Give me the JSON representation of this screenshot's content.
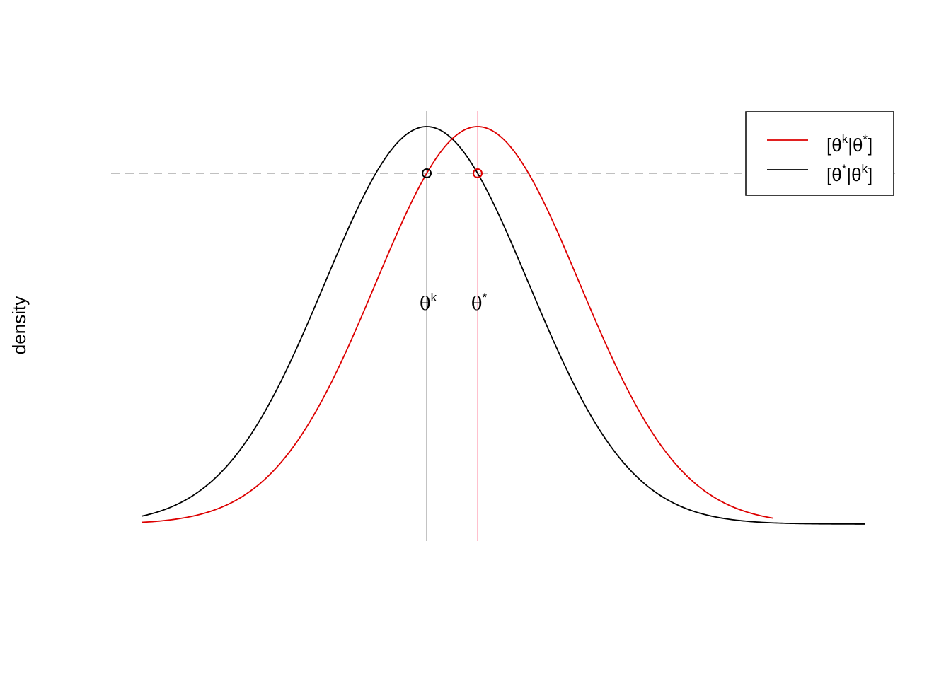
{
  "chart_data": {
    "type": "line",
    "ylabel": "density",
    "xlim": [
      -2.8,
      4.3
    ],
    "ylim": [
      0,
      1
    ],
    "grid": false,
    "legend_position": "top-right",
    "colors": {
      "red_curve": "#dd0000",
      "black_curve": "#000000",
      "theta_k_line": "#b0b0b0",
      "theta_star_line": "#ffb0c0",
      "dashed_line": "#b8b8b8"
    },
    "series": [
      {
        "name": "[θk|θ*]",
        "color": "#dd0000",
        "mean": 0.5,
        "sd": 1,
        "x_range": [
          -2.8,
          3.4
        ]
      },
      {
        "name": "[θ*|θk]",
        "color": "#000000",
        "mean": 0,
        "sd": 1,
        "x_range": [
          -2.8,
          4.3
        ]
      }
    ],
    "vertical_lines": [
      {
        "label_base": "θ",
        "label_sup": "k",
        "x": 0,
        "color": "#b0b0b0"
      },
      {
        "label_base": "θ",
        "label_sup": "*",
        "x": 0.5,
        "color": "#ffb0c0"
      }
    ],
    "horizontal_dashed_line": {
      "y": 0.8825,
      "color": "#b8b8b8"
    },
    "points": [
      {
        "x": 0,
        "y": 0.8825,
        "color": "#000000"
      },
      {
        "x": 0.5,
        "y": 0.8825,
        "color": "#dd0000"
      }
    ],
    "legend": [
      {
        "base1": "[θ",
        "sup1": "k",
        "mid": "|θ",
        "sup2": "*",
        "end": "]",
        "color": "#dd0000"
      },
      {
        "base1": "[θ",
        "sup1": "*",
        "mid": "|θ",
        "sup2": "k",
        "end": "]",
        "color": "#000000"
      }
    ]
  }
}
